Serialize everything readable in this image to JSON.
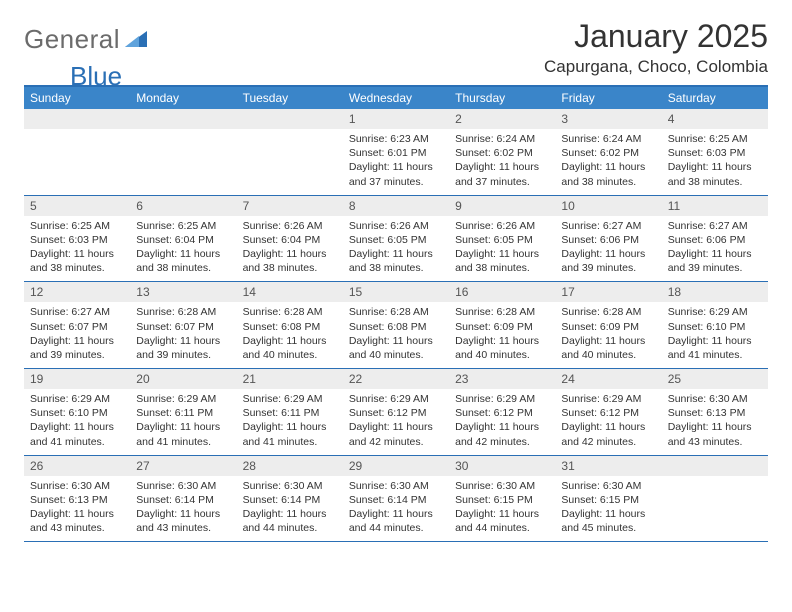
{
  "logo": {
    "general": "General",
    "blue": "Blue"
  },
  "title": "January 2025",
  "location": "Capurgana, Choco, Colombia",
  "colors": {
    "header_bg": "#3a85c9",
    "border": "#2a6fb5",
    "daynum_bg": "#ededed",
    "text": "#333333",
    "logo_gray": "#6b6b6b",
    "logo_blue": "#2a6fb5"
  },
  "dows": [
    "Sunday",
    "Monday",
    "Tuesday",
    "Wednesday",
    "Thursday",
    "Friday",
    "Saturday"
  ],
  "weeks": [
    [
      {
        "n": "",
        "l": []
      },
      {
        "n": "",
        "l": []
      },
      {
        "n": "",
        "l": []
      },
      {
        "n": "1",
        "l": [
          "Sunrise: 6:23 AM",
          "Sunset: 6:01 PM",
          "Daylight: 11 hours and 37 minutes."
        ]
      },
      {
        "n": "2",
        "l": [
          "Sunrise: 6:24 AM",
          "Sunset: 6:02 PM",
          "Daylight: 11 hours and 37 minutes."
        ]
      },
      {
        "n": "3",
        "l": [
          "Sunrise: 6:24 AM",
          "Sunset: 6:02 PM",
          "Daylight: 11 hours and 38 minutes."
        ]
      },
      {
        "n": "4",
        "l": [
          "Sunrise: 6:25 AM",
          "Sunset: 6:03 PM",
          "Daylight: 11 hours and 38 minutes."
        ]
      }
    ],
    [
      {
        "n": "5",
        "l": [
          "Sunrise: 6:25 AM",
          "Sunset: 6:03 PM",
          "Daylight: 11 hours and 38 minutes."
        ]
      },
      {
        "n": "6",
        "l": [
          "Sunrise: 6:25 AM",
          "Sunset: 6:04 PM",
          "Daylight: 11 hours and 38 minutes."
        ]
      },
      {
        "n": "7",
        "l": [
          "Sunrise: 6:26 AM",
          "Sunset: 6:04 PM",
          "Daylight: 11 hours and 38 minutes."
        ]
      },
      {
        "n": "8",
        "l": [
          "Sunrise: 6:26 AM",
          "Sunset: 6:05 PM",
          "Daylight: 11 hours and 38 minutes."
        ]
      },
      {
        "n": "9",
        "l": [
          "Sunrise: 6:26 AM",
          "Sunset: 6:05 PM",
          "Daylight: 11 hours and 38 minutes."
        ]
      },
      {
        "n": "10",
        "l": [
          "Sunrise: 6:27 AM",
          "Sunset: 6:06 PM",
          "Daylight: 11 hours and 39 minutes."
        ]
      },
      {
        "n": "11",
        "l": [
          "Sunrise: 6:27 AM",
          "Sunset: 6:06 PM",
          "Daylight: 11 hours and 39 minutes."
        ]
      }
    ],
    [
      {
        "n": "12",
        "l": [
          "Sunrise: 6:27 AM",
          "Sunset: 6:07 PM",
          "Daylight: 11 hours and 39 minutes."
        ]
      },
      {
        "n": "13",
        "l": [
          "Sunrise: 6:28 AM",
          "Sunset: 6:07 PM",
          "Daylight: 11 hours and 39 minutes."
        ]
      },
      {
        "n": "14",
        "l": [
          "Sunrise: 6:28 AM",
          "Sunset: 6:08 PM",
          "Daylight: 11 hours and 40 minutes."
        ]
      },
      {
        "n": "15",
        "l": [
          "Sunrise: 6:28 AM",
          "Sunset: 6:08 PM",
          "Daylight: 11 hours and 40 minutes."
        ]
      },
      {
        "n": "16",
        "l": [
          "Sunrise: 6:28 AM",
          "Sunset: 6:09 PM",
          "Daylight: 11 hours and 40 minutes."
        ]
      },
      {
        "n": "17",
        "l": [
          "Sunrise: 6:28 AM",
          "Sunset: 6:09 PM",
          "Daylight: 11 hours and 40 minutes."
        ]
      },
      {
        "n": "18",
        "l": [
          "Sunrise: 6:29 AM",
          "Sunset: 6:10 PM",
          "Daylight: 11 hours and 41 minutes."
        ]
      }
    ],
    [
      {
        "n": "19",
        "l": [
          "Sunrise: 6:29 AM",
          "Sunset: 6:10 PM",
          "Daylight: 11 hours and 41 minutes."
        ]
      },
      {
        "n": "20",
        "l": [
          "Sunrise: 6:29 AM",
          "Sunset: 6:11 PM",
          "Daylight: 11 hours and 41 minutes."
        ]
      },
      {
        "n": "21",
        "l": [
          "Sunrise: 6:29 AM",
          "Sunset: 6:11 PM",
          "Daylight: 11 hours and 41 minutes."
        ]
      },
      {
        "n": "22",
        "l": [
          "Sunrise: 6:29 AM",
          "Sunset: 6:12 PM",
          "Daylight: 11 hours and 42 minutes."
        ]
      },
      {
        "n": "23",
        "l": [
          "Sunrise: 6:29 AM",
          "Sunset: 6:12 PM",
          "Daylight: 11 hours and 42 minutes."
        ]
      },
      {
        "n": "24",
        "l": [
          "Sunrise: 6:29 AM",
          "Sunset: 6:12 PM",
          "Daylight: 11 hours and 42 minutes."
        ]
      },
      {
        "n": "25",
        "l": [
          "Sunrise: 6:30 AM",
          "Sunset: 6:13 PM",
          "Daylight: 11 hours and 43 minutes."
        ]
      }
    ],
    [
      {
        "n": "26",
        "l": [
          "Sunrise: 6:30 AM",
          "Sunset: 6:13 PM",
          "Daylight: 11 hours and 43 minutes."
        ]
      },
      {
        "n": "27",
        "l": [
          "Sunrise: 6:30 AM",
          "Sunset: 6:14 PM",
          "Daylight: 11 hours and 43 minutes."
        ]
      },
      {
        "n": "28",
        "l": [
          "Sunrise: 6:30 AM",
          "Sunset: 6:14 PM",
          "Daylight: 11 hours and 44 minutes."
        ]
      },
      {
        "n": "29",
        "l": [
          "Sunrise: 6:30 AM",
          "Sunset: 6:14 PM",
          "Daylight: 11 hours and 44 minutes."
        ]
      },
      {
        "n": "30",
        "l": [
          "Sunrise: 6:30 AM",
          "Sunset: 6:15 PM",
          "Daylight: 11 hours and 44 minutes."
        ]
      },
      {
        "n": "31",
        "l": [
          "Sunrise: 6:30 AM",
          "Sunset: 6:15 PM",
          "Daylight: 11 hours and 45 minutes."
        ]
      },
      {
        "n": "",
        "l": []
      }
    ]
  ]
}
